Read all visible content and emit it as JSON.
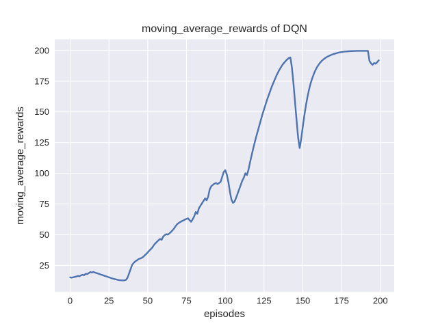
{
  "chart_data": {
    "type": "line",
    "title": "moving_average_rewards of DQN",
    "xlabel": "episodes",
    "ylabel": "moving_average_rewards",
    "x_ticks": [
      0,
      25,
      50,
      75,
      100,
      125,
      150,
      175,
      200
    ],
    "y_ticks": [
      25,
      50,
      75,
      100,
      125,
      150,
      175,
      200
    ],
    "xlim": [
      -9.95,
      208.95
    ],
    "ylim": [
      3.35,
      209.05
    ],
    "grid": true,
    "legend": null,
    "colors": {
      "axes_background": "#EAEAF2",
      "grid": "#FFFFFF",
      "line": "#4C72B0",
      "text": "#262626",
      "figure_background": "#FFFFFF"
    },
    "series": [
      {
        "name": "moving_average_rewards",
        "color": "#4C72B0",
        "points": [
          [
            0,
            15.2
          ],
          [
            1,
            15.0
          ],
          [
            2,
            15.3
          ],
          [
            3,
            15.6
          ],
          [
            4,
            15.9
          ],
          [
            5,
            16.4
          ],
          [
            6,
            16.1
          ],
          [
            7,
            16.9
          ],
          [
            8,
            17.3
          ],
          [
            9,
            17.0
          ],
          [
            10,
            18.1
          ],
          [
            11,
            17.9
          ],
          [
            12,
            18.7
          ],
          [
            13,
            19.5
          ],
          [
            14,
            19.2
          ],
          [
            15,
            19.6
          ],
          [
            16,
            19.1
          ],
          [
            17,
            18.7
          ],
          [
            18,
            18.3
          ],
          [
            19,
            17.9
          ],
          [
            20,
            17.4
          ],
          [
            21,
            17.0
          ],
          [
            22,
            16.5
          ],
          [
            23,
            16.1
          ],
          [
            24,
            15.7
          ],
          [
            25,
            15.3
          ],
          [
            26,
            14.8
          ],
          [
            27,
            14.4
          ],
          [
            28,
            14.0
          ],
          [
            29,
            13.7
          ],
          [
            30,
            13.4
          ],
          [
            31,
            13.1
          ],
          [
            32,
            12.9
          ],
          [
            33,
            12.8
          ],
          [
            34,
            12.7
          ],
          [
            35,
            12.8
          ],
          [
            36,
            13.2
          ],
          [
            37,
            15.0
          ],
          [
            38,
            18.5
          ],
          [
            39,
            22.0
          ],
          [
            40,
            25.5
          ],
          [
            41,
            27.0
          ],
          [
            42,
            28.3
          ],
          [
            43,
            29.0
          ],
          [
            44,
            30.0
          ],
          [
            45,
            30.5
          ],
          [
            46,
            31.0
          ],
          [
            47,
            31.8
          ],
          [
            48,
            33.0
          ],
          [
            49,
            34.2
          ],
          [
            50,
            35.5
          ],
          [
            51,
            37.0
          ],
          [
            52,
            38.2
          ],
          [
            53,
            39.6
          ],
          [
            54,
            41.5
          ],
          [
            55,
            43.0
          ],
          [
            56,
            44.2
          ],
          [
            57,
            45.5
          ],
          [
            58,
            46.5
          ],
          [
            59,
            45.8
          ],
          [
            60,
            48.5
          ],
          [
            61,
            49.6
          ],
          [
            62,
            50.4
          ],
          [
            63,
            50.1
          ],
          [
            64,
            51.0
          ],
          [
            65,
            52.2
          ],
          [
            66,
            53.5
          ],
          [
            67,
            55.0
          ],
          [
            68,
            57.0
          ],
          [
            69,
            58.5
          ],
          [
            70,
            59.5
          ],
          [
            71,
            60.3
          ],
          [
            72,
            61.0
          ],
          [
            73,
            61.6
          ],
          [
            74,
            62.3
          ],
          [
            75,
            62.8
          ],
          [
            76,
            63.3
          ],
          [
            77,
            61.8
          ],
          [
            78,
            60.5
          ],
          [
            79,
            62.5
          ],
          [
            80,
            65.0
          ],
          [
            81,
            68.5
          ],
          [
            82,
            67.0
          ],
          [
            83,
            71.5
          ],
          [
            84,
            73.5
          ],
          [
            85,
            75.5
          ],
          [
            86,
            77.5
          ],
          [
            87,
            79.5
          ],
          [
            88,
            78.0
          ],
          [
            89,
            81.0
          ],
          [
            90,
            87.0
          ],
          [
            91,
            89.5
          ],
          [
            92,
            90.5
          ],
          [
            93,
            91.5
          ],
          [
            94,
            92.0
          ],
          [
            95,
            91.2
          ],
          [
            96,
            92.0
          ],
          [
            97,
            93.0
          ],
          [
            98,
            97.0
          ],
          [
            99,
            101.0
          ],
          [
            100,
            102.5
          ],
          [
            101,
            99.0
          ],
          [
            102,
            93.0
          ],
          [
            103,
            85.0
          ],
          [
            104,
            78.5
          ],
          [
            105,
            75.8
          ],
          [
            106,
            77.0
          ],
          [
            107,
            80.0
          ],
          [
            108,
            83.5
          ],
          [
            109,
            87.0
          ],
          [
            110,
            90.5
          ],
          [
            111,
            94.0
          ],
          [
            112,
            96.5
          ],
          [
            113,
            100.0
          ],
          [
            114,
            98.5
          ],
          [
            115,
            103.0
          ],
          [
            116,
            109.0
          ],
          [
            117,
            114.5
          ],
          [
            118,
            120.0
          ],
          [
            119,
            125.0
          ],
          [
            120,
            130.0
          ],
          [
            121,
            134.5
          ],
          [
            122,
            139.0
          ],
          [
            123,
            143.5
          ],
          [
            124,
            148.0
          ],
          [
            125,
            152.0
          ],
          [
            126,
            156.0
          ],
          [
            127,
            160.0
          ],
          [
            128,
            163.5
          ],
          [
            129,
            167.0
          ],
          [
            130,
            170.5
          ],
          [
            131,
            173.5
          ],
          [
            132,
            176.5
          ],
          [
            133,
            179.5
          ],
          [
            134,
            182.0
          ],
          [
            135,
            184.5
          ],
          [
            136,
            186.5
          ],
          [
            137,
            188.5
          ],
          [
            138,
            190.0
          ],
          [
            139,
            191.5
          ],
          [
            140,
            192.8
          ],
          [
            141,
            193.8
          ],
          [
            142,
            194.3
          ],
          [
            143,
            186.0
          ],
          [
            144,
            173.0
          ],
          [
            145,
            158.0
          ],
          [
            146,
            143.0
          ],
          [
            147,
            129.0
          ],
          [
            148,
            120.5
          ],
          [
            149,
            128.0
          ],
          [
            150,
            138.0
          ],
          [
            151,
            147.0
          ],
          [
            152,
            155.0
          ],
          [
            153,
            162.0
          ],
          [
            154,
            168.0
          ],
          [
            155,
            173.0
          ],
          [
            156,
            177.0
          ],
          [
            157,
            180.5
          ],
          [
            158,
            183.5
          ],
          [
            159,
            186.0
          ],
          [
            160,
            188.0
          ],
          [
            161,
            189.8
          ],
          [
            162,
            191.2
          ],
          [
            163,
            192.4
          ],
          [
            164,
            193.4
          ],
          [
            165,
            194.3
          ],
          [
            166,
            195.0
          ],
          [
            167,
            195.6
          ],
          [
            168,
            196.2
          ],
          [
            169,
            196.7
          ],
          [
            170,
            197.1
          ],
          [
            171,
            197.5
          ],
          [
            172,
            197.9
          ],
          [
            173,
            198.2
          ],
          [
            174,
            198.5
          ],
          [
            175,
            198.7
          ],
          [
            176,
            198.9
          ],
          [
            177,
            199.1
          ],
          [
            178,
            199.2
          ],
          [
            179,
            199.3
          ],
          [
            180,
            199.4
          ],
          [
            181,
            199.5
          ],
          [
            182,
            199.5
          ],
          [
            183,
            199.6
          ],
          [
            184,
            199.6
          ],
          [
            185,
            199.7
          ],
          [
            186,
            199.7
          ],
          [
            187,
            199.7
          ],
          [
            188,
            199.7
          ],
          [
            189,
            199.7
          ],
          [
            190,
            199.7
          ],
          [
            191,
            199.7
          ],
          [
            192,
            199.7
          ],
          [
            193,
            191.5
          ],
          [
            194,
            189.5
          ],
          [
            195,
            188.3
          ],
          [
            196,
            189.8
          ],
          [
            197,
            189.2
          ],
          [
            198,
            190.5
          ],
          [
            199,
            192.0
          ]
        ]
      }
    ]
  }
}
